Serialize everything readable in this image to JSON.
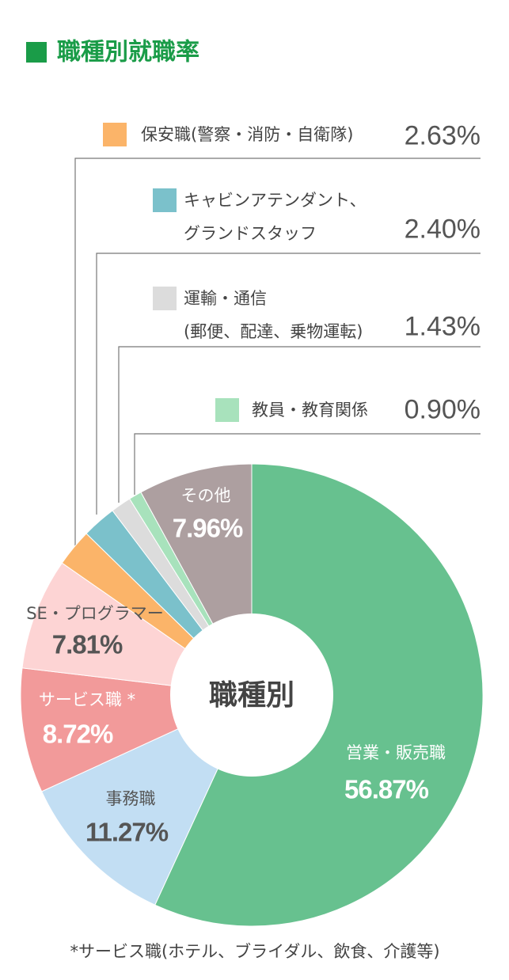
{
  "chart_data": {
    "type": "pie",
    "title": "職種別就職率",
    "center_label": "職種別",
    "categories": [
      "営業・販売職",
      "事務職",
      "サービス職 *",
      "SE・プログラマー",
      "保安職(警察・消防・自衛隊)",
      "キャビンアテンダント、\nグランドスタッフ",
      "運輸・通信\n(郵便、配達、乗物運転)",
      "教員・教育関係",
      "その他"
    ],
    "values": [
      56.87,
      11.27,
      8.72,
      7.81,
      2.63,
      2.4,
      1.43,
      0.9,
      7.96
    ],
    "value_labels": [
      "56.87%",
      "11.27%",
      "8.72%",
      "7.81%",
      "2.63%",
      "2.40%",
      "1.43%",
      "0.90%",
      "7.96%"
    ],
    "colors": [
      "#67c18f",
      "#c2def3",
      "#f29a9a",
      "#fdd4d4",
      "#fbb469",
      "#7bc1cb",
      "#dcdcdc",
      "#a8e2bc",
      "#ad9fa0"
    ],
    "footnote": "*サービス職(ホテル、ブライダル、飲食、介護等)"
  }
}
